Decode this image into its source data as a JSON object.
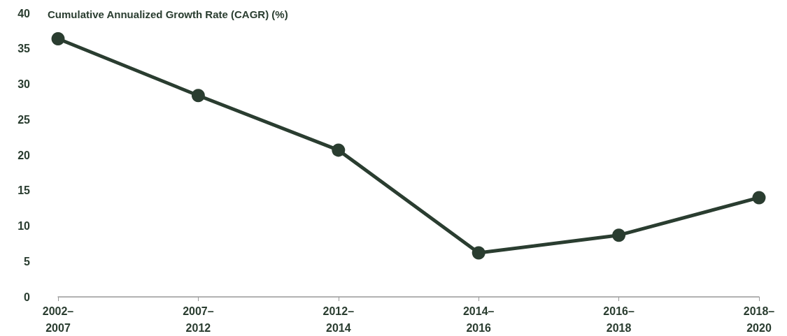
{
  "chart_data": {
    "type": "line",
    "title": "Cumulative Annualized Growth Rate (CAGR) (%)",
    "categories": [
      "2002–\n2007",
      "2007–\n2012",
      "2012–\n2014",
      "2014–\n2016",
      "2016–\n2018",
      "2018–\n2020"
    ],
    "series": [
      {
        "color": "#2a3d30",
        "values": [
          36.4,
          28.4,
          20.7,
          6.2,
          8.7,
          14.0
        ]
      }
    ],
    "ylim": [
      0,
      40
    ],
    "yticks": [
      0,
      5,
      10,
      15,
      20,
      25,
      30,
      35,
      40
    ],
    "grid": false,
    "marker": "circle",
    "line_style": "solid"
  }
}
